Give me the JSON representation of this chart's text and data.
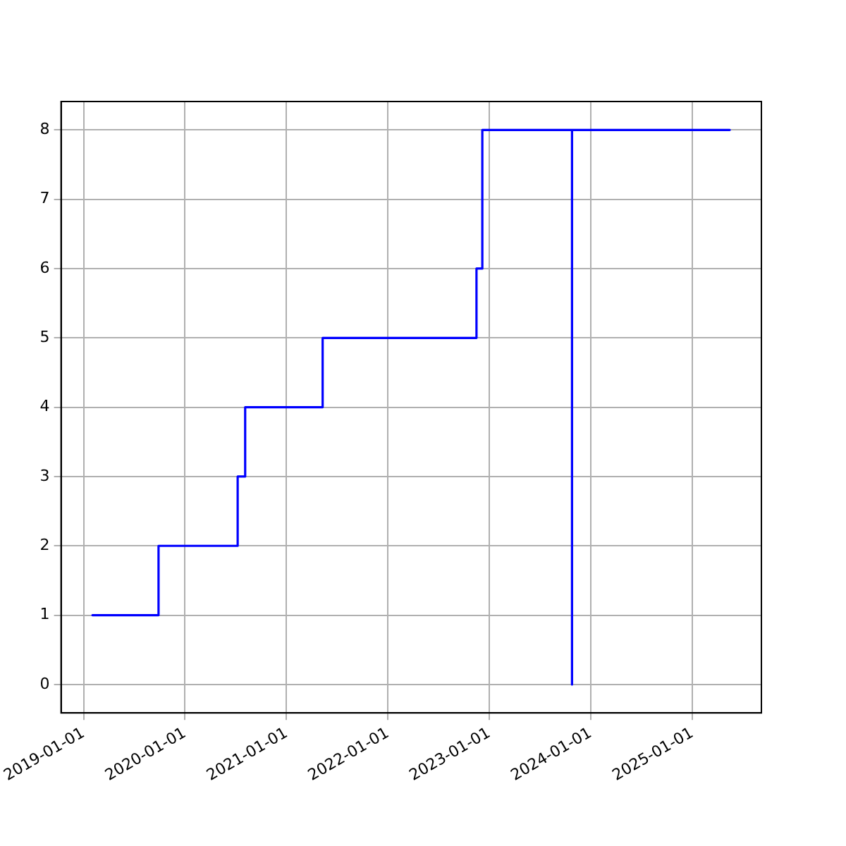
{
  "chart_data": {
    "type": "step",
    "x": [
      "2019-02-02",
      "2019-09-28",
      "2020-07-09",
      "2020-08-05",
      "2021-05-11",
      "2022-11-16",
      "2022-12-07",
      "2023-10-26",
      "2023-10-26",
      "2025-05-16"
    ],
    "series": [
      {
        "color": "#0000ff",
        "values": [
          1,
          2,
          3,
          4,
          5,
          6,
          8,
          0,
          8,
          8
        ]
      }
    ],
    "xlim": [
      "2018-10-12",
      "2025-09-07"
    ],
    "xticks": [
      "2019-01-01",
      "2020-01-01",
      "2021-01-01",
      "2022-01-01",
      "2023-01-01",
      "2024-01-01",
      "2025-01-01"
    ],
    "ylim": [
      -0.41,
      8.41
    ],
    "yticks": [
      0,
      1,
      2,
      3,
      4,
      5,
      6,
      7,
      8
    ],
    "grid": true,
    "legend": false,
    "marker": "none",
    "line_style": "solid"
  }
}
